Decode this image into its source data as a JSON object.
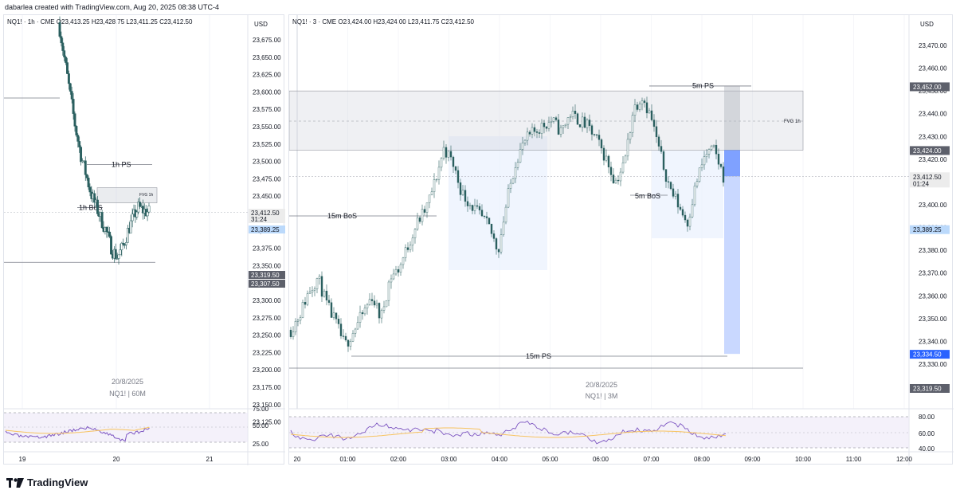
{
  "header": {
    "text": "dabarlea created with TradingView.com, Aug 20, 2025 08:38 UTC-4"
  },
  "left_panel": {
    "ohlc": "NQ1! · 1h · CME  O23,413.25  H23,428.75  L23,411.25  C23,412.50",
    "currency": "USD",
    "watermark_date": "20/8/2025",
    "watermark_symbol": "NQ1! | 60M",
    "labels": {
      "ps": "1h PS",
      "bos": "1h BoS",
      "fvg": "FVG 1h"
    },
    "price_ticks": [
      "23,675.00",
      "23,650.00",
      "23,625.00",
      "23,600.00",
      "23,575.00",
      "23,550.00",
      "23,525.00",
      "23,500.00",
      "23,475.00",
      "23,450.00",
      "23,425.00",
      "23,400.00",
      "23,375.00",
      "23,350.00",
      "23,325.00",
      "23,300.00",
      "23,275.00",
      "23,250.00",
      "23,225.00",
      "23,200.00",
      "23,175.00",
      "23,150.00",
      "23,125.00"
    ],
    "price_badges": [
      {
        "text": "23,412.50",
        "sub": "31:24",
        "color": "#ececec",
        "fg": "#131722"
      },
      {
        "text": "23,389.25",
        "color": "#bbd9fb",
        "fg": "#131722"
      },
      {
        "text": "23,319.50",
        "color": "#5d606b",
        "fg": "#ffffff"
      },
      {
        "text": "23,307.50",
        "color": "#5d606b",
        "fg": "#ffffff"
      }
    ],
    "time_ticks": [
      "19",
      "20",
      "21"
    ],
    "rsi_ticks": [
      "75.00",
      "50.00",
      "25.00"
    ]
  },
  "right_panel": {
    "ohlc": "NQ1! · 3 · CME  O23,424.00  H23,424.00  L23,411.75  C23,412.50",
    "currency": "USD",
    "watermark_date": "20/8/2025",
    "watermark_symbol": "NQ1! | 3M",
    "labels": {
      "ps5": "5m PS",
      "fvg": "FVG 1h",
      "bos15": "15m BoS",
      "bos5": "5m BoS",
      "ps15": "15m PS"
    },
    "price_ticks": [
      "23,470.00",
      "23,460.00",
      "23,450.00",
      "23,440.00",
      "23,430.00",
      "23,420.00",
      "23,410.00",
      "23,400.00",
      "23,390.00",
      "23,380.00",
      "23,370.00",
      "23,360.00",
      "23,350.00",
      "23,340.00",
      "23,330.00"
    ],
    "price_badges": [
      {
        "text": "23,452.00",
        "color": "#5d606b",
        "fg": "#ffffff"
      },
      {
        "text": "23,424.00",
        "color": "#5d606b",
        "fg": "#ffffff"
      },
      {
        "text": "23,412.50",
        "sub": "01:24",
        "color": "#ececec",
        "fg": "#131722"
      },
      {
        "text": "23,389.25",
        "color": "#bbd9fb",
        "fg": "#131722"
      },
      {
        "text": "23,334.50",
        "color": "#2962ff",
        "fg": "#ffffff"
      },
      {
        "text": "23,319.50",
        "color": "#5d606b",
        "fg": "#ffffff"
      }
    ],
    "time_ticks": [
      "20",
      "01:00",
      "02:00",
      "03:00",
      "04:00",
      "05:00",
      "06:00",
      "07:00",
      "08:00",
      "09:00",
      "10:00",
      "11:00",
      "12:00"
    ],
    "rsi_ticks": [
      "80.00",
      "60.00",
      "40.00"
    ]
  },
  "footer": {
    "logo": "TradingView"
  },
  "chart_data": [
    {
      "type": "candlestick",
      "title": "NQ1! · 1h · CME",
      "x": [
        "19",
        "20",
        "21"
      ],
      "ylim": [
        23125,
        23690
      ],
      "approx_close_path": [
        23690,
        23640,
        23590,
        23540,
        23500,
        23470,
        23440,
        23420,
        23400,
        23380,
        23355,
        23345,
        23360,
        23385,
        23405,
        23420,
        23415,
        23412.5
      ],
      "levels": {
        "1h PS": 23485,
        "1h BoS": 23420,
        "FVG 1h": [
          23427,
          23450
        ],
        "current": 23412.5
      }
    },
    {
      "type": "candlestick",
      "title": "NQ1! · 3 · CME",
      "x": [
        "20",
        "01:00",
        "02:00",
        "03:00",
        "04:00",
        "05:00",
        "06:00",
        "07:00",
        "08:00",
        "09:00",
        "10:00",
        "11:00",
        "12:00"
      ],
      "ylim": [
        23322,
        23476
      ],
      "approx_close_path": [
        23345,
        23352,
        23362,
        23368,
        23356,
        23348,
        23338,
        23345,
        23352,
        23360,
        23350,
        23368,
        23372,
        23382,
        23392,
        23398,
        23410,
        23425,
        23418,
        23405,
        23400,
        23395,
        23390,
        23380,
        23402,
        23420,
        23428,
        23432,
        23435,
        23437,
        23432,
        23440,
        23437,
        23434,
        23428,
        23420,
        23410,
        23418,
        23442,
        23448,
        23438,
        23422,
        23408,
        23400,
        23392,
        23410,
        23422,
        23424,
        23412.5
      ],
      "levels": {
        "5m PS": 23452,
        "FVG 1h": [
          23424,
          23450
        ],
        "15m BoS": 23398.5,
        "5m BoS": 23405,
        "15m PS": 23338,
        "current": 23412.5,
        "target": 23334.5
      }
    }
  ]
}
